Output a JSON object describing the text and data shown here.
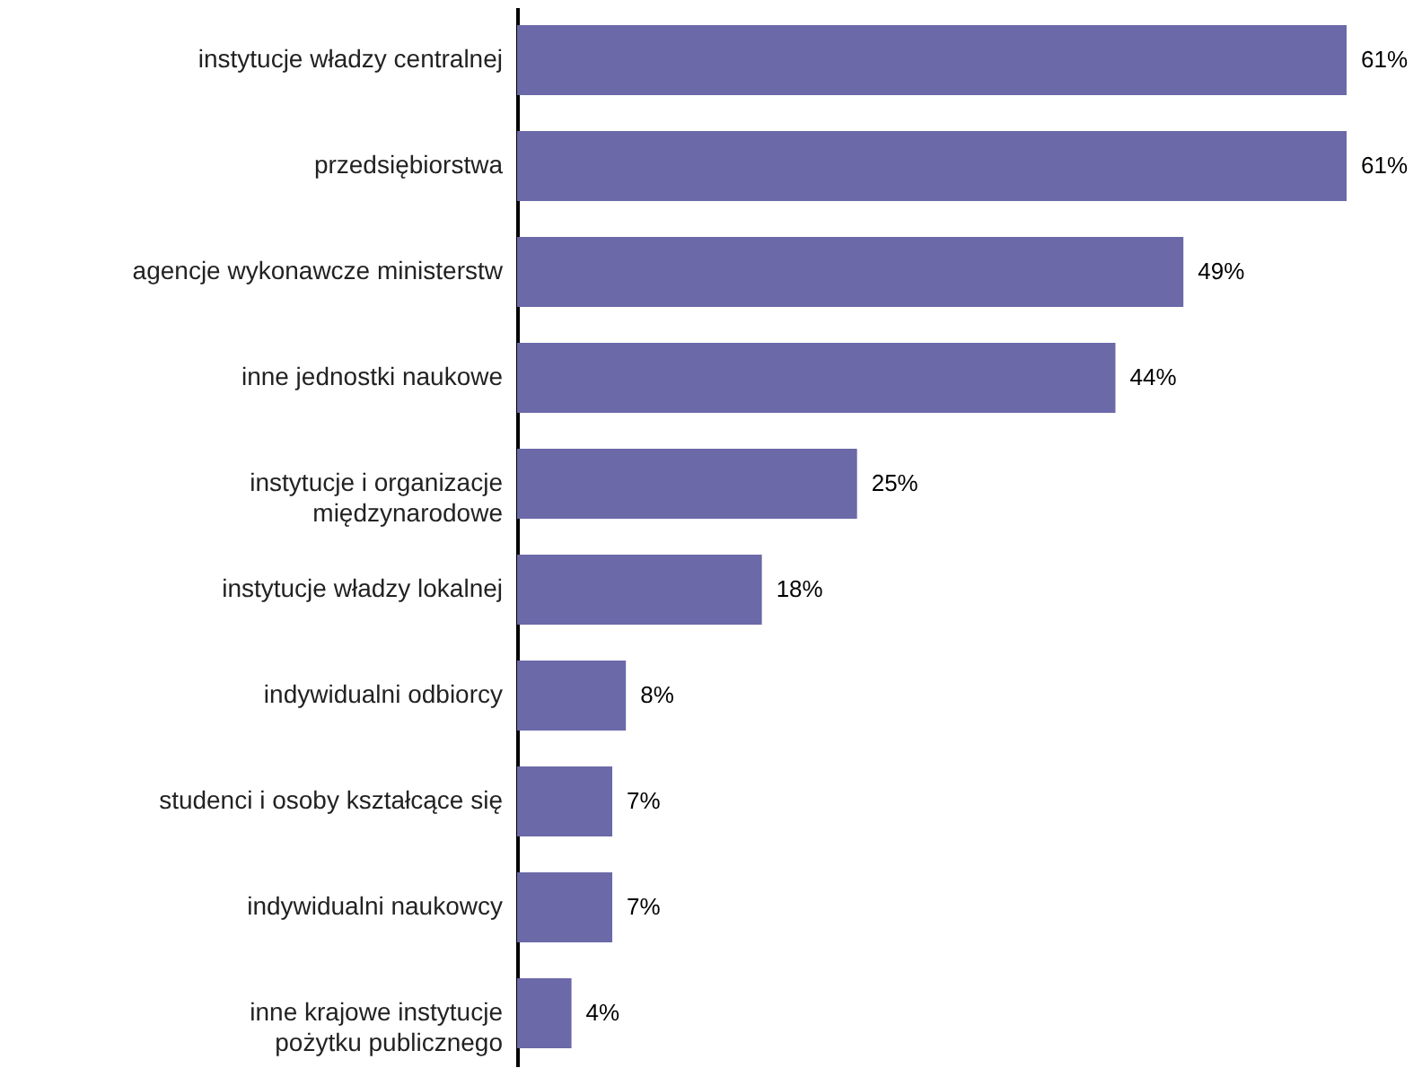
{
  "chart_data": {
    "type": "bar",
    "orientation": "horizontal",
    "categories": [
      "instytucje władzy centralnej",
      "przedsiębiorstwa",
      "agencje wykonawcze ministerstw",
      "inne jednostki naukowe",
      "instytucje i organizacje międzynarodowe",
      "instytucje władzy lokalnej",
      "indywidualni odbiorcy",
      "studenci i osoby kształcące się",
      "indywidualni naukowcy",
      "inne krajowe instytucje pożytku publicznego"
    ],
    "values": [
      61,
      61,
      49,
      44,
      25,
      18,
      8,
      7,
      7,
      4
    ],
    "value_labels": [
      "61%",
      "61%",
      "49%",
      "44%",
      "25%",
      "18%",
      "8%",
      "7%",
      "7%",
      "4%"
    ],
    "color": "#6b69a8",
    "grid": false
  }
}
